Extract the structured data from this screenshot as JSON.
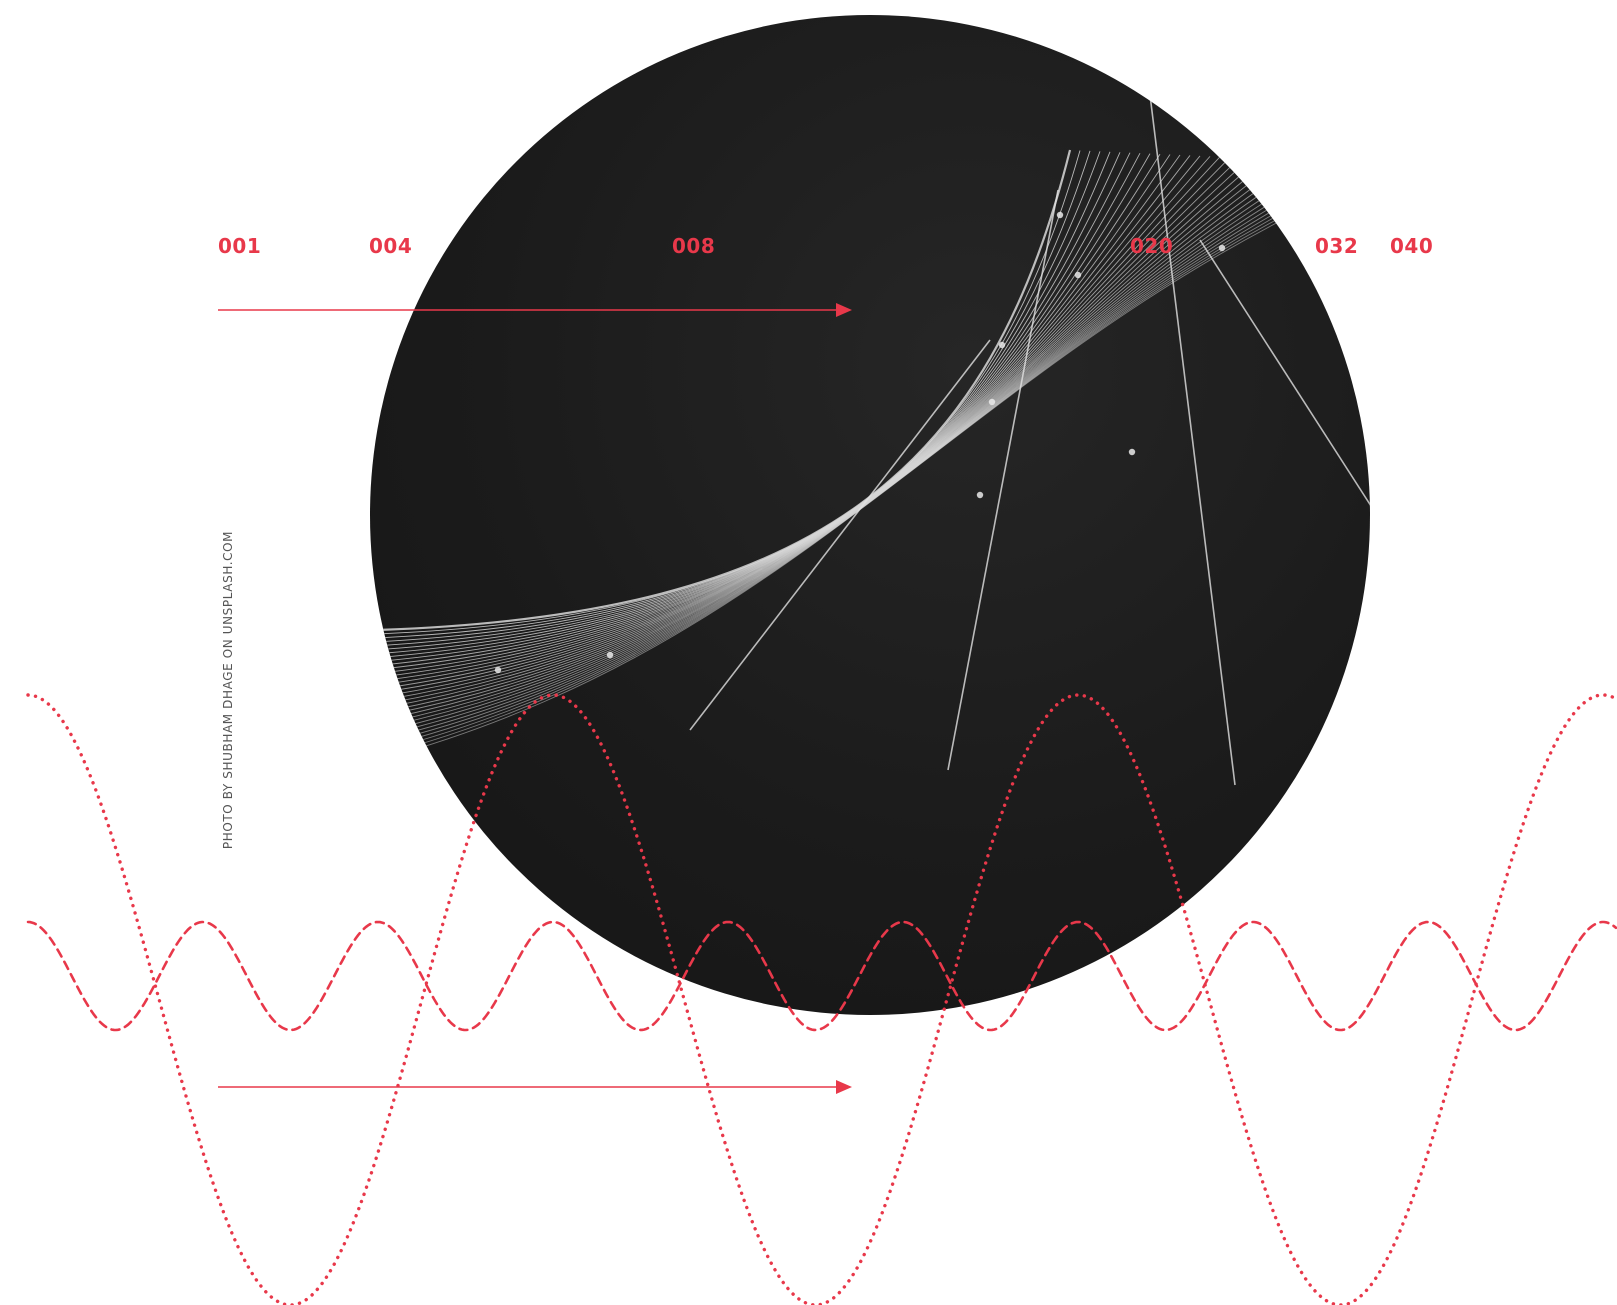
{
  "markers": [
    "001",
    "004",
    "008",
    "020",
    "032",
    "040"
  ],
  "credit": "PHOTO BY SHUBHAM DHAGE ON UNSPLASH.COM",
  "colors": {
    "accent": "#e8384a",
    "photo_background": "#1b1b1b",
    "mesh_lines": "#d8d8d8",
    "page_background": "#ffffff"
  },
  "icons": [
    "arrow-right-icon"
  ]
}
